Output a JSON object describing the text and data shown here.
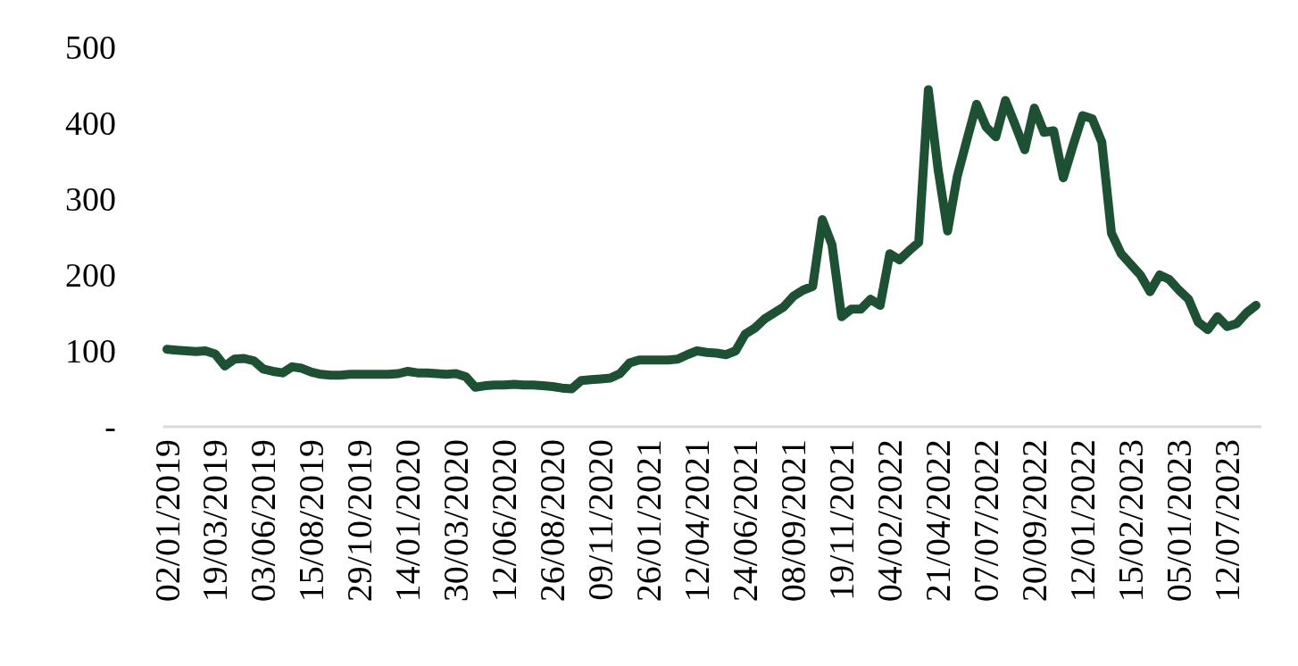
{
  "chart_data": {
    "type": "line",
    "categories": [
      "02/01/2019",
      null,
      null,
      null,
      null,
      "19/03/2019",
      null,
      null,
      null,
      null,
      "03/06/2019",
      null,
      null,
      null,
      null,
      "15/08/2019",
      null,
      null,
      null,
      null,
      "29/10/2019",
      null,
      null,
      null,
      null,
      "14/01/2020",
      null,
      null,
      null,
      null,
      "30/03/2020",
      null,
      null,
      null,
      null,
      "12/06/2020",
      null,
      null,
      null,
      null,
      "26/08/2020",
      null,
      null,
      null,
      null,
      "09/11/2020",
      null,
      null,
      null,
      null,
      "26/01/2021",
      null,
      null,
      null,
      null,
      "12/04/2021",
      null,
      null,
      null,
      null,
      "24/06/2021",
      null,
      null,
      null,
      null,
      "08/09/2021",
      null,
      null,
      null,
      null,
      "19/11/2021",
      null,
      null,
      null,
      null,
      "04/02/2022",
      null,
      null,
      null,
      null,
      "21/04/2022",
      null,
      null,
      null,
      null,
      "07/07/2022",
      null,
      null,
      null,
      null,
      "20/09/2022",
      null,
      null,
      null,
      null,
      "12/01/2022",
      null,
      null,
      null,
      null,
      "15/02/2023",
      null,
      null,
      null,
      null,
      "05/01/2023",
      null,
      null,
      null,
      null,
      "12/07/2023",
      null,
      null,
      null
    ],
    "series": [
      {
        "color": "#1e5134",
        "values": [
          102,
          101,
          100,
          99,
          100,
          96,
          80,
          89,
          90,
          87,
          76,
          73,
          71,
          79,
          77,
          72,
          69,
          68,
          68,
          69,
          69,
          69,
          69,
          69,
          70,
          73,
          71,
          71,
          70,
          69,
          70,
          66,
          52,
          54,
          55,
          55,
          56,
          55,
          55,
          54,
          53,
          51,
          50,
          61,
          62,
          63,
          64,
          70,
          84,
          88,
          88,
          88,
          88,
          89,
          95,
          100,
          98,
          97,
          95,
          100,
          122,
          130,
          142,
          150,
          158,
          172,
          180,
          185,
          273,
          240,
          145,
          155,
          155,
          168,
          160,
          228,
          220,
          232,
          243,
          444,
          340,
          258,
          330,
          378,
          425,
          395,
          382,
          430,
          398,
          365,
          420,
          388,
          390,
          328,
          370,
          410,
          406,
          375,
          255,
          228,
          214,
          200,
          178,
          200,
          194,
          180,
          168,
          138,
          128,
          145,
          132,
          136,
          150,
          160
        ]
      }
    ],
    "ylim": [
      0,
      500
    ],
    "yticks": [
      {
        "value": 0,
        "label": "-"
      },
      100,
      200,
      300,
      400,
      500
    ],
    "grid": false,
    "marker": "none",
    "line_style": "solid"
  }
}
